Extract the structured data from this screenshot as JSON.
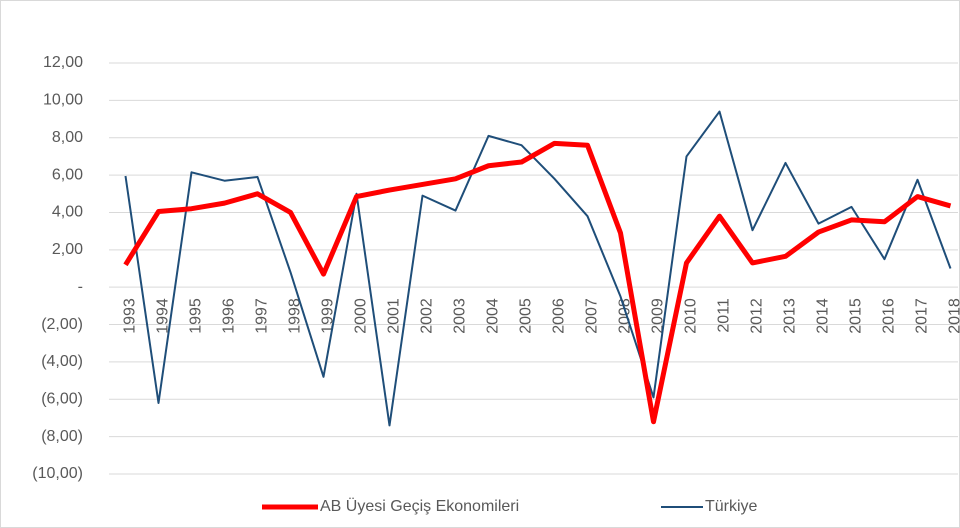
{
  "chart_data": {
    "type": "line",
    "categories": [
      "1993",
      "1994",
      "1995",
      "1996",
      "1997",
      "1998",
      "1999",
      "2000",
      "2001",
      "2002",
      "2003",
      "2004",
      "2005",
      "2006",
      "2007",
      "2008",
      "2009",
      "2010",
      "2011",
      "2012",
      "2013",
      "2014",
      "2015",
      "2016",
      "2017",
      "2018"
    ],
    "series": [
      {
        "name": "AB Üyesi Geçiş Ekonomileri",
        "color": "#ff0000",
        "width": 5,
        "values": [
          1.2,
          4.05,
          4.2,
          4.5,
          5.0,
          4.0,
          0.7,
          4.85,
          5.2,
          5.5,
          5.8,
          6.5,
          6.7,
          7.7,
          7.6,
          2.9,
          -7.2,
          1.3,
          3.8,
          1.3,
          1.65,
          2.95,
          3.6,
          3.5,
          4.85,
          4.35
        ]
      },
      {
        "name": "Türkiye",
        "color": "#1f4e79",
        "width": 2,
        "values": [
          5.95,
          -6.2,
          6.15,
          5.7,
          5.9,
          0.8,
          -4.8,
          5.0,
          -7.4,
          4.9,
          4.1,
          8.1,
          7.6,
          5.8,
          3.8,
          -0.5,
          -5.9,
          7.0,
          9.4,
          3.05,
          6.65,
          3.4,
          4.3,
          1.5,
          5.75,
          1.0
        ]
      }
    ],
    "ylim": [
      -10,
      12
    ],
    "yticks": [
      {
        "value": -10,
        "label": "(10,00)"
      },
      {
        "value": -8,
        "label": "(8,00)"
      },
      {
        "value": -6,
        "label": "(6,00)"
      },
      {
        "value": -4,
        "label": "(4,00)"
      },
      {
        "value": -2,
        "label": "(2,00)"
      },
      {
        "value": 0,
        "label": "-"
      },
      {
        "value": 2,
        "label": "2,00"
      },
      {
        "value": 4,
        "label": "4,00"
      },
      {
        "value": 6,
        "label": "6,00"
      },
      {
        "value": 8,
        "label": "8,00"
      },
      {
        "value": 10,
        "label": "10,00"
      },
      {
        "value": 12,
        "label": "12,00"
      }
    ],
    "grid": true,
    "legend": "bottom"
  }
}
